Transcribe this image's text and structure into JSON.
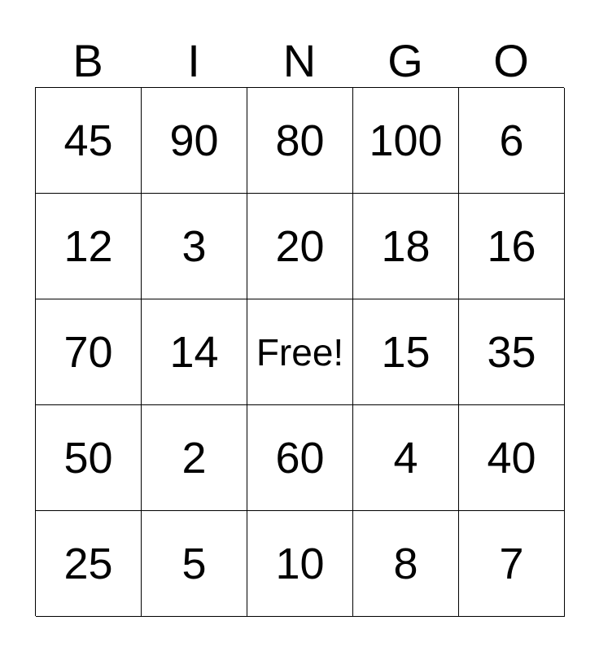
{
  "header": [
    "B",
    "I",
    "N",
    "G",
    "O"
  ],
  "rows": [
    [
      "45",
      "90",
      "80",
      "100",
      "6"
    ],
    [
      "12",
      "3",
      "20",
      "18",
      "16"
    ],
    [
      "70",
      "14",
      "Free!",
      "15",
      "35"
    ],
    [
      "50",
      "2",
      "60",
      "4",
      "40"
    ],
    [
      "25",
      "5",
      "10",
      "8",
      "7"
    ]
  ]
}
